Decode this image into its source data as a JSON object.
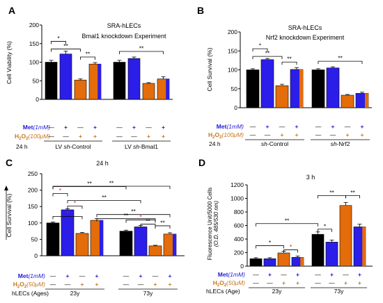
{
  "colors": {
    "control": "#000000",
    "met": "#2b1ee8",
    "h2o2": "#e46c0a",
    "met_h2o2_left": "#e46c0a",
    "met_h2o2_right": "#2b1ee8",
    "met_label": "#1f17d6",
    "h2o2_label": "#c8761a",
    "axis": "#000000",
    "sig_red": "#d61f1f"
  },
  "plus": "+",
  "minus": "—",
  "chart_data": [
    {
      "panel": "A",
      "type": "bar",
      "title": "SRA-hLECs",
      "subtitle": "Bmal1 knockdown Experiment",
      "ylabel": "Cell Viability  (%)",
      "ylim": [
        0,
        200
      ],
      "yticks": [
        "0",
        "50",
        "100",
        "150",
        "200"
      ],
      "row_labels": [
        "Met (1mM)",
        "H2O2 (100μM)"
      ],
      "time_label": "24 h",
      "group_labels": [
        "LV sh-Control",
        "LV sh-Bmal1"
      ],
      "conditions": [
        {
          "met": false,
          "h2o2": false
        },
        {
          "met": true,
          "h2o2": false
        },
        {
          "met": false,
          "h2o2": true
        },
        {
          "met": true,
          "h2o2": true
        }
      ],
      "series": [
        {
          "group": "LV sh-Control",
          "values": [
            100,
            122,
            52,
            95
          ],
          "errors": [
            5,
            8,
            3,
            4
          ]
        },
        {
          "group": "LV sh-Bmal1",
          "values": [
            100,
            110,
            43,
            55
          ],
          "errors": [
            5,
            4,
            2,
            6
          ]
        }
      ],
      "significance": [
        "*",
        "**",
        "**",
        "**"
      ]
    },
    {
      "panel": "B",
      "type": "bar",
      "title": "SRA-hLECs",
      "subtitle": "Nrf2 knockdown Experiment",
      "ylabel": "Cell Survival  (%)",
      "ylim": [
        0,
        200
      ],
      "yticks": [
        "0",
        "50",
        "100",
        "150",
        "200"
      ],
      "row_labels": [
        "Met (1mM)",
        "H2O2 (100μM)"
      ],
      "time_label": "24 h",
      "group_labels": [
        "sh-Control",
        "sh-Nrf2"
      ],
      "conditions": [
        {
          "met": false,
          "h2o2": false
        },
        {
          "met": true,
          "h2o2": false
        },
        {
          "met": false,
          "h2o2": true
        },
        {
          "met": true,
          "h2o2": true
        }
      ],
      "series": [
        {
          "group": "sh-Control",
          "values": [
            100,
            127,
            58,
            101
          ],
          "errors": [
            3,
            3,
            4,
            5
          ]
        },
        {
          "group": "sh-Nrf2",
          "values": [
            100,
            105,
            33,
            38
          ],
          "errors": [
            3,
            3,
            2,
            3
          ]
        }
      ],
      "significance": [
        "*",
        "**",
        "**",
        "**"
      ]
    },
    {
      "panel": "C",
      "type": "bar",
      "title": "24 h",
      "ylabel": "Cell Survival  (%)",
      "ylim": [
        0,
        250
      ],
      "yticks": [
        "0",
        "50",
        "100",
        "150",
        "200",
        "250"
      ],
      "row_labels": [
        "Met (1mM)",
        "H2O2 (50μM)"
      ],
      "axis_caption": "hLECs (Ages)",
      "group_labels": [
        "23y",
        "73y"
      ],
      "conditions": [
        {
          "met": false,
          "h2o2": false
        },
        {
          "met": true,
          "h2o2": false
        },
        {
          "met": false,
          "h2o2": true
        },
        {
          "met": true,
          "h2o2": true
        }
      ],
      "series": [
        {
          "group": "23y",
          "values": [
            100,
            140,
            68,
            108
          ],
          "errors": [
            3,
            3,
            3,
            5
          ]
        },
        {
          "group": "73y",
          "values": [
            75,
            88,
            30,
            66
          ],
          "errors": [
            3,
            4,
            2,
            4
          ]
        }
      ],
      "significance": [
        "**",
        "*",
        "**",
        "*",
        "**",
        "*",
        "**",
        "**",
        "*",
        "**",
        "**"
      ]
    },
    {
      "panel": "D",
      "type": "bar",
      "title": "3 h",
      "ylabel": "Fluorescence Unit/5000 Cells",
      "ylabel2": "(O.D. 485/530 nm)",
      "ylim": [
        0,
        1200
      ],
      "yticks": [
        "0",
        "200",
        "400",
        "600",
        "800",
        "1000",
        "1200"
      ],
      "row_labels": [
        "Met (1mM)",
        "H2O2 (50μM)"
      ],
      "axis_caption": "hLECs (Age)",
      "group_labels": [
        "23y",
        "73y"
      ],
      "conditions": [
        {
          "met": false,
          "h2o2": false
        },
        {
          "met": true,
          "h2o2": false
        },
        {
          "met": false,
          "h2o2": true
        },
        {
          "met": true,
          "h2o2": true
        }
      ],
      "series": [
        {
          "group": "23y",
          "values": [
            110,
            110,
            195,
            130
          ],
          "errors": [
            15,
            15,
            25,
            20
          ]
        },
        {
          "group": "73y",
          "values": [
            470,
            355,
            895,
            580
          ],
          "errors": [
            35,
            30,
            45,
            40
          ]
        }
      ],
      "significance": [
        "**",
        "*",
        "*",
        "**",
        "**",
        "*"
      ]
    }
  ]
}
